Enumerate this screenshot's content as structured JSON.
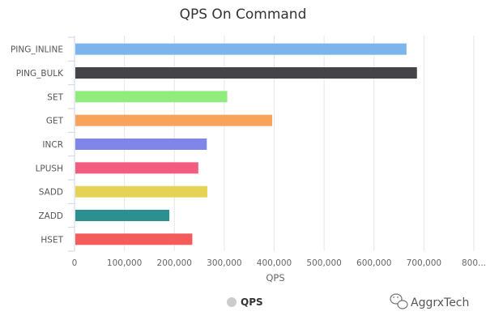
{
  "chart_data": {
    "type": "bar",
    "orientation": "horizontal",
    "title": "QPS On Command",
    "xlabel": "QPS",
    "ylabel": "",
    "categories": [
      "PING_INLINE",
      "PING_BULK",
      "SET",
      "GET",
      "INCR",
      "LPUSH",
      "SADD",
      "ZADD",
      "HSET"
    ],
    "series": [
      {
        "name": "QPS",
        "values": [
          665000,
          686000,
          306000,
          396000,
          265000,
          248000,
          266000,
          190000,
          236000
        ]
      }
    ],
    "bar_colors": [
      "#7cb5ec",
      "#434348",
      "#90ed7d",
      "#f7a35c",
      "#8085e9",
      "#f15c80",
      "#e4d354",
      "#2b908f",
      "#f45b5b"
    ],
    "xlim": [
      0,
      800000
    ],
    "x_ticks": [
      "0",
      "100,000",
      "200,000",
      "300,000",
      "400,000",
      "500,000",
      "600,000",
      "700,000",
      "800..."
    ],
    "grid": true,
    "legend": {
      "position": "bottom-center",
      "marker_color": "#cccccc"
    }
  },
  "watermark": {
    "text": "AggrxTech",
    "icon": "wechat-icon"
  }
}
